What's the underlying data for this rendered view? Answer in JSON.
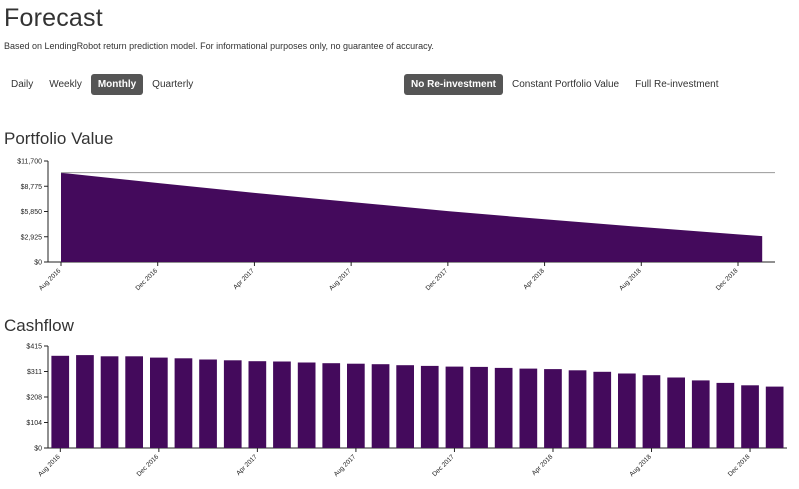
{
  "header": {
    "title": "Forecast",
    "subtitle": "Based on LendingRobot return prediction model. For informational purposes only, no guarantee of accuracy."
  },
  "period_tabs": [
    {
      "label": "Daily",
      "active": false
    },
    {
      "label": "Weekly",
      "active": false
    },
    {
      "label": "Monthly",
      "active": true
    },
    {
      "label": "Quarterly",
      "active": false
    }
  ],
  "reinvest_tabs": [
    {
      "label": "No Re-investment",
      "active": true
    },
    {
      "label": "Constant Portfolio Value",
      "active": false
    },
    {
      "label": "Full Re-investment",
      "active": false
    }
  ],
  "colors": {
    "accent": "#440a5c",
    "button_active": "#555555",
    "reference_line": "#999999"
  },
  "chart_data": [
    {
      "type": "area",
      "title": "Portfolio Value",
      "y_ticks": [
        "$0",
        "$2,925",
        "$5,850",
        "$8,775",
        "$11,700"
      ],
      "ylim": [
        0,
        11700
      ],
      "x_ticks": [
        "Aug 2016",
        "Dec 2016",
        "Apr 2017",
        "Aug 2017",
        "Dec 2017",
        "Apr 2018",
        "Aug 2018",
        "Dec 2018"
      ],
      "x": [
        "Aug 2016",
        "Dec 2016",
        "Apr 2017",
        "Aug 2017",
        "Dec 2017",
        "Apr 2018",
        "Aug 2018",
        "Dec 2018",
        "Jan 2019"
      ],
      "values": [
        10350,
        9150,
        8000,
        6950,
        5900,
        4950,
        4050,
        3200,
        3000
      ],
      "reference_line": 10350
    },
    {
      "type": "bar",
      "title": "Cashflow",
      "y_ticks": [
        "$0",
        "$104",
        "$208",
        "$311",
        "$415"
      ],
      "ylim": [
        0,
        415
      ],
      "x_ticks": [
        "Aug 2016",
        "Dec 2016",
        "Apr 2017",
        "Aug 2017",
        "Dec 2017",
        "Apr 2018",
        "Aug 2018",
        "Dec 2018"
      ],
      "categories": [
        "Aug 2016",
        "Sep 2016",
        "Oct 2016",
        "Nov 2016",
        "Dec 2016",
        "Jan 2017",
        "Feb 2017",
        "Mar 2017",
        "Apr 2017",
        "May 2017",
        "Jun 2017",
        "Jul 2017",
        "Aug 2017",
        "Sep 2017",
        "Oct 2017",
        "Nov 2017",
        "Dec 2017",
        "Jan 2018",
        "Feb 2018",
        "Mar 2018",
        "Apr 2018",
        "May 2018",
        "Jun 2018",
        "Jul 2018",
        "Aug 2018",
        "Sep 2018",
        "Oct 2018",
        "Nov 2018",
        "Dec 2018",
        "Jan 2019"
      ],
      "values": [
        375,
        378,
        373,
        373,
        368,
        365,
        360,
        357,
        353,
        352,
        348,
        345,
        343,
        341,
        337,
        334,
        331,
        330,
        326,
        323,
        321,
        316,
        310,
        303,
        296,
        287,
        275,
        265,
        255,
        250
      ]
    }
  ]
}
